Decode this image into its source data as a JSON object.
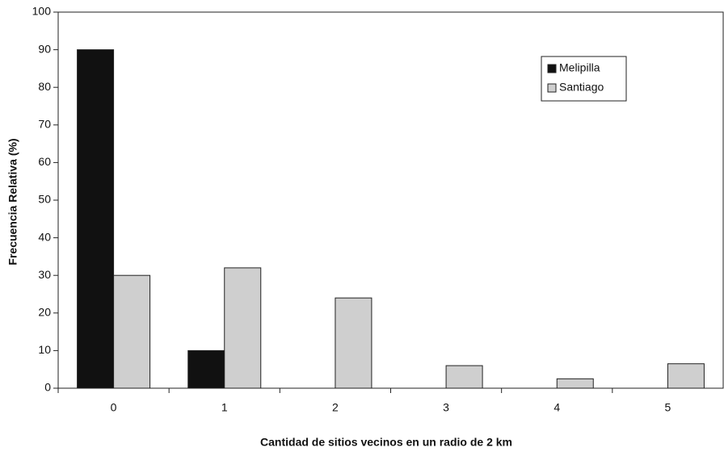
{
  "chart_data": {
    "type": "bar",
    "xlabel": "Cantidad de sitios vecinos en un radio de 2 km",
    "ylabel": "Frecuencia Relativa (%)",
    "categories": [
      "0",
      "1",
      "2",
      "3",
      "4",
      "5"
    ],
    "series": [
      {
        "name": "Melipilla",
        "color": "#111111",
        "values": [
          90,
          10,
          0,
          0,
          0,
          0
        ]
      },
      {
        "name": "Santiago",
        "color": "#cfcfcf",
        "values": [
          30,
          32,
          24,
          6,
          2.5,
          6.5
        ]
      }
    ],
    "ylim": [
      0,
      100
    ],
    "yticks": [
      0,
      10,
      20,
      30,
      40,
      50,
      60,
      70,
      80,
      90,
      100
    ],
    "legend": "upper right"
  }
}
